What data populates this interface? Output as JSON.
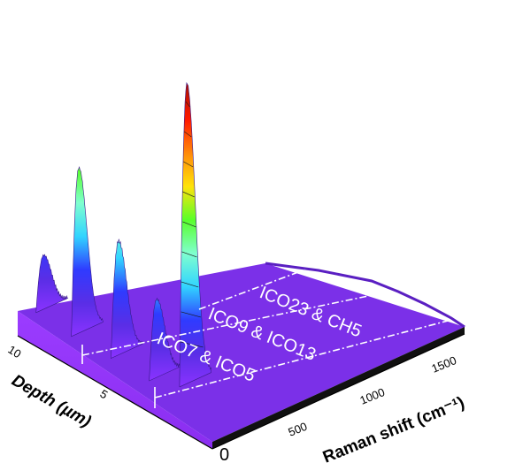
{
  "chart_data": {
    "type": "surface-3d",
    "title": "",
    "xlabel": "Raman shift (cm⁻¹)",
    "ylabel": "Depth (µm)",
    "x_ticks": [
      "0",
      "500",
      "1000",
      "1500"
    ],
    "y_ticks": [
      "10",
      "5"
    ],
    "xlim": [
      0,
      1800
    ],
    "ylim": [
      0,
      11
    ],
    "region_labels": [
      "ICO23 & CH5",
      "ICO9 & ICO13",
      "ICO7 & ICO5"
    ],
    "colormap": [
      "#8a33ff",
      "#5a2ee6",
      "#2f3bff",
      "#31d4ff",
      "#7fffcf",
      "#59ff2a",
      "#ffe30a",
      "#ff8a0a",
      "#ff1a00",
      "#b01000"
    ],
    "peaks": [
      {
        "depth": 10.5,
        "raman_shift": 120,
        "intensity": 0.18
      },
      {
        "depth": 8.5,
        "raman_shift": 120,
        "intensity": 0.55
      },
      {
        "depth": 6.5,
        "raman_shift": 150,
        "intensity": 0.38
      },
      {
        "depth": 4.5,
        "raman_shift": 170,
        "intensity": 0.26
      },
      {
        "depth": 3.5,
        "raman_shift": 260,
        "intensity": 1.0
      }
    ]
  }
}
